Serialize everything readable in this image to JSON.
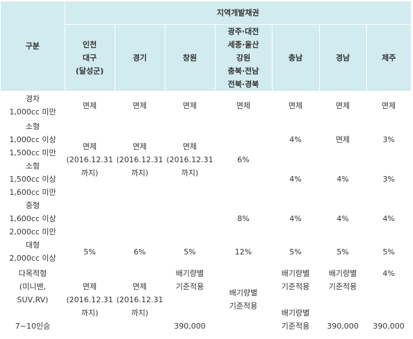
{
  "header": {
    "category": "구분",
    "group": "지역개발채권",
    "regions": [
      "인천\n대구\n(달성군)",
      "경기",
      "창원",
      "광주·대전\n세종·울산\n강원\n충북·전남\n전북·경북",
      "충남",
      "경남",
      "제주"
    ]
  },
  "rows": [
    {
      "category": "경차\n1,000cc 미만",
      "cells": [
        "면제",
        "면제",
        "면제",
        "면제",
        "면제",
        "면제",
        "면제"
      ]
    },
    {
      "category": "소형\n1,000cc 이상\n1,500cc 미만",
      "cells": [
        "",
        "",
        "",
        "",
        "4%",
        "면제",
        "3%"
      ]
    },
    {
      "category": "소형\n1,500cc 이상\n1,600cc 미만",
      "cells": [
        "면제\n(2016.12.31\n까지)",
        "면제\n(2016.12.31\n까지)",
        "면제\n(2016.12.31\n까지)",
        "6%",
        "4%",
        "4%",
        "3%"
      ]
    },
    {
      "category": "중형\n1,600cc 이상\n2,000cc 미만",
      "cells": [
        "",
        "",
        "",
        "8%",
        "4%",
        "4%",
        "4%"
      ]
    },
    {
      "category": "대형\n2,000cc 이상",
      "cells": [
        "5%",
        "6%",
        "5%",
        "12%",
        "5%",
        "5%",
        "5%"
      ]
    },
    {
      "category": "다목적형\n(미니밴,\nSUV,RV)\n\n7~10인승",
      "cells": [
        "면제\n(2016.12.31\n까지)",
        "면제\n(2016.12.31\n까지)",
        "배기량별\n기준적용\n\n\n390,000",
        "배기량별\n기준적용",
        "배기량별\n기준적용\n\n배기량별\n기준적용",
        "배기량별\n기준적용\n\n\n390,000",
        "4%\n\n\n\n390,000"
      ]
    }
  ]
}
